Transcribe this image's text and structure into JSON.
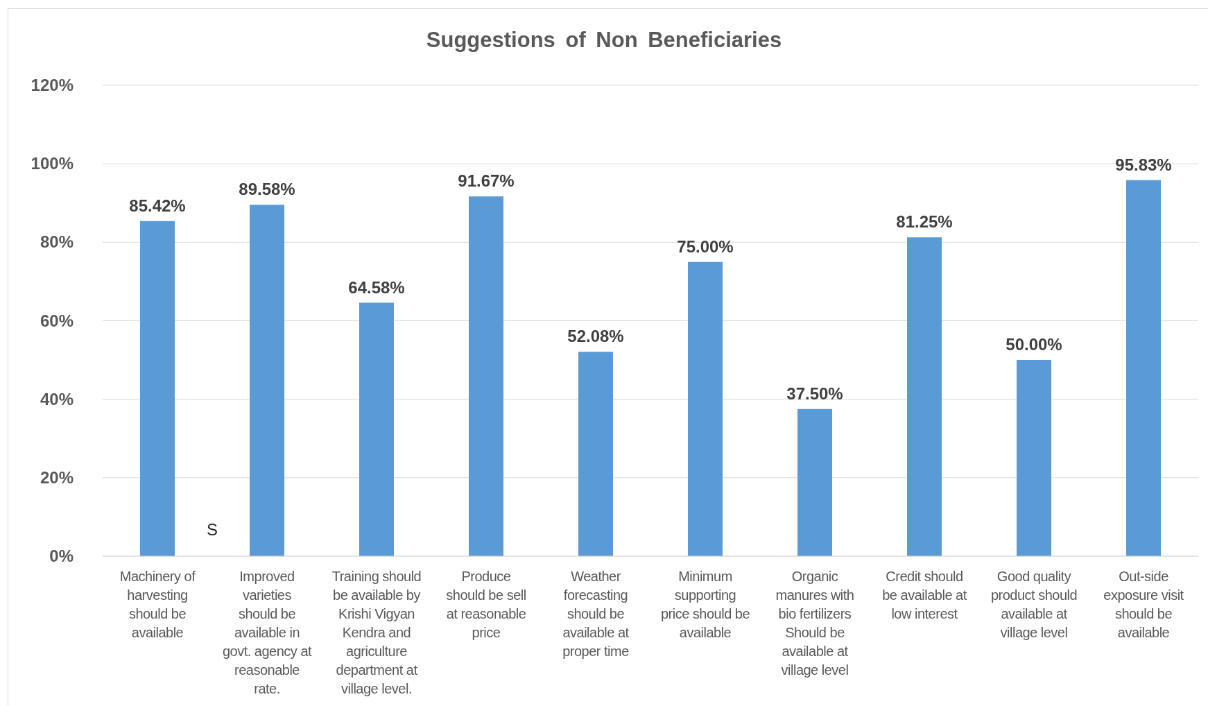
{
  "chart_data": {
    "type": "bar",
    "title": "Suggestions of Non Beneficiaries",
    "categories": [
      "Machinery of harvesting should be available",
      "Improved varieties should be available in govt. agency at reasonable rate.",
      "Training should be available by Krishi Vigyan Kendra and agriculture department at village level.",
      "Produce should be sell at reasonable price",
      "Weather forecasting should be available at proper time",
      "Minimum supporting price should be available",
      "Organic manures with bio fertilizers Should be available at village level",
      "Credit should be available at low interest",
      "Good quality product should available at village level",
      "Out-side exposure visit should be available"
    ],
    "values": [
      85.42,
      89.58,
      64.58,
      91.67,
      52.08,
      75.0,
      37.5,
      81.25,
      50.0,
      95.83
    ],
    "color": "#5b9bd5",
    "value_labels": [
      "85.42%",
      "89.58%",
      "64.58%",
      "91.67%",
      "52.08%",
      "75.00%",
      "37.50%",
      "81.25%",
      "50.00%",
      "95.83%"
    ],
    "ylim": [
      0,
      120
    ],
    "yticks": [
      {
        "value": 0,
        "label": "0%"
      },
      {
        "value": 20,
        "label": "20%"
      },
      {
        "value": 40,
        "label": "40%"
      },
      {
        "value": 60,
        "label": "60%"
      },
      {
        "value": 80,
        "label": "80%"
      },
      {
        "value": 100,
        "label": "100%"
      },
      {
        "value": 120,
        "label": "120%"
      }
    ],
    "grid": "y",
    "annotations": [
      "S"
    ]
  }
}
